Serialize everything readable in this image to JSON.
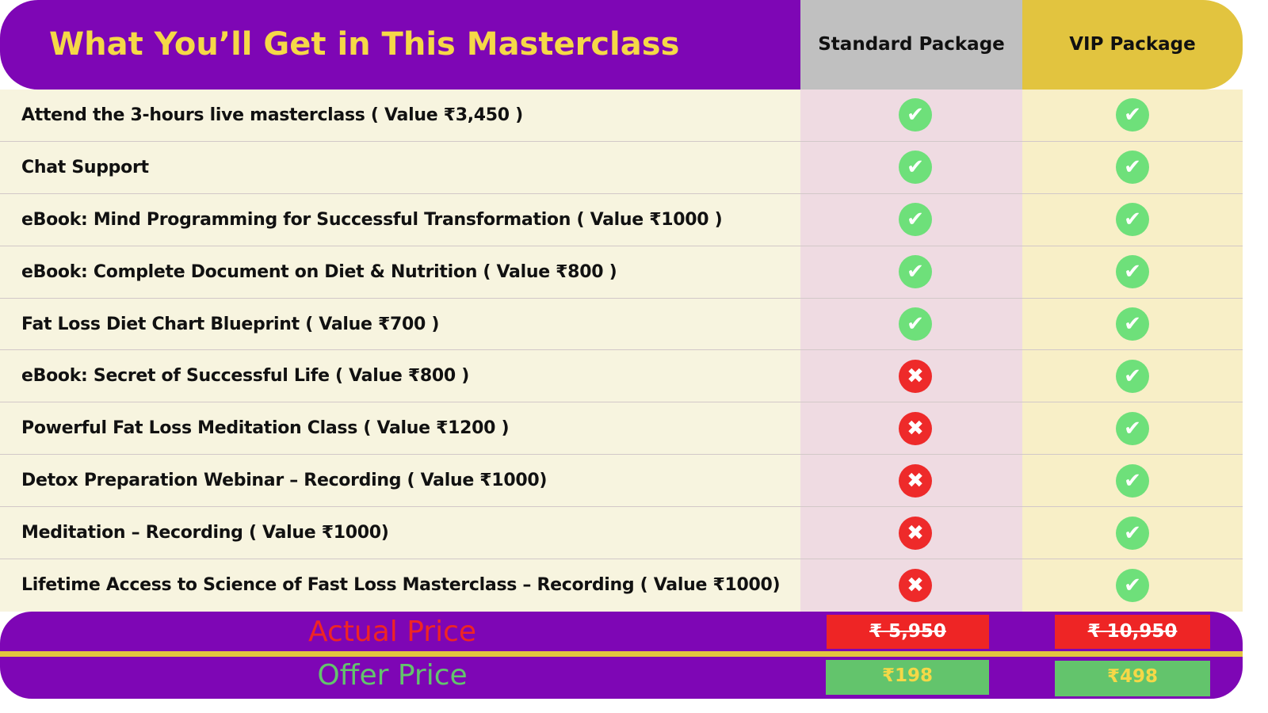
{
  "header": {
    "title": "What You’ll Get in This Masterclass",
    "standard": "Standard Package",
    "vip": "VIP Package"
  },
  "features": [
    {
      "label": "Attend the 3-hours live masterclass ( Value ₹3,450 )",
      "standard": true,
      "vip": true
    },
    {
      "label": "Chat Support",
      "standard": true,
      "vip": true
    },
    {
      "label": "eBook: Mind Programming for Successful Transformation  ( Value ₹1000 )",
      "standard": true,
      "vip": true
    },
    {
      "label": "eBook: Complete Document on Diet & Nutrition  ( Value ₹800 )",
      "standard": true,
      "vip": true
    },
    {
      "label": "Fat Loss Diet Chart Blueprint  ( Value ₹700 )",
      "standard": true,
      "vip": true
    },
    {
      "label": "eBook: Secret of Successful Life  ( Value ₹800 )",
      "standard": false,
      "vip": true
    },
    {
      "label": "Powerful Fat Loss Meditation Class  ( Value ₹1200 )",
      "standard": false,
      "vip": true
    },
    {
      "label": "Detox Preparation Webinar – Recording  ( Value ₹1000)",
      "standard": false,
      "vip": true
    },
    {
      "label": "Meditation – Recording  ( Value ₹1000)",
      "standard": false,
      "vip": true
    },
    {
      "label": "Lifetime Access to Science of Fast Loss Masterclass – Recording  ( Value ₹1000)",
      "standard": false,
      "vip": true
    }
  ],
  "icons": {
    "included": "check-circle-icon",
    "excluded": "x-circle-icon"
  },
  "pricing": {
    "actual_label": "Actual Price",
    "actual_standard": "₹ 5,950",
    "actual_vip": "₹ 10,950",
    "offer_label": "Offer Price",
    "offer_standard": "₹198",
    "offer_vip": "₹498"
  },
  "colors": {
    "purple": "#7e06b5",
    "gold": "#e2c43f",
    "check": "#6ee07a",
    "cross": "#ee2a2a",
    "actual_text": "#ee2525",
    "offer_text": "#63c46c"
  }
}
